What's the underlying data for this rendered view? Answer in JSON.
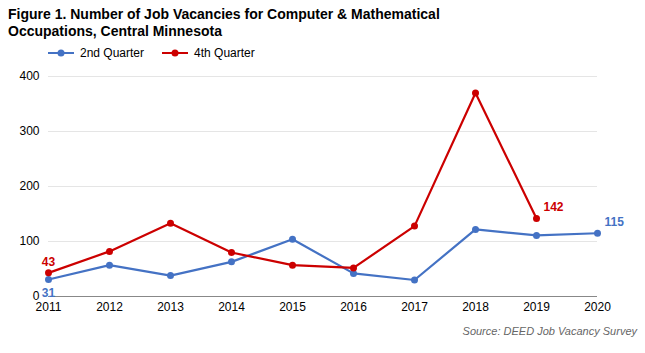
{
  "chart_data": {
    "type": "line",
    "title": "Figure 1. Number of Job Vacancies for Computer & Mathematical\nOccupations, Central Minnesota",
    "x": [
      2011,
      2012,
      2013,
      2014,
      2015,
      2016,
      2017,
      2018,
      2019,
      2020
    ],
    "series": [
      {
        "name": "2nd Quarter",
        "color": "#4472c4",
        "marker": "circle",
        "values": [
          31,
          57,
          38,
          63,
          104,
          42,
          30,
          122,
          111,
          115
        ]
      },
      {
        "name": "4th Quarter",
        "color": "#cc0000",
        "marker": "circle",
        "values": [
          43,
          82,
          133,
          80,
          57,
          52,
          128,
          370,
          142,
          null
        ]
      }
    ],
    "xlim": [
      2011,
      2020
    ],
    "xticks": [
      2011,
      2012,
      2013,
      2014,
      2015,
      2016,
      2017,
      2018,
      2019,
      2020
    ],
    "ylim": [
      0,
      400
    ],
    "yticks": [
      0,
      100,
      200,
      300,
      400
    ],
    "grid": true,
    "legend": "upper left",
    "annotations": [
      {
        "text": "31",
        "x": 2011,
        "y": 31,
        "color": "#4472c4"
      },
      {
        "text": "43",
        "x": 2011,
        "y": 43,
        "color": "#cc0000"
      },
      {
        "text": "142",
        "x": 2019,
        "y": 142,
        "color": "#cc0000"
      },
      {
        "text": "115",
        "x": 2020,
        "y": 115,
        "color": "#4472c4"
      }
    ],
    "source": "Source: DEED Job Vacancy Survey"
  }
}
